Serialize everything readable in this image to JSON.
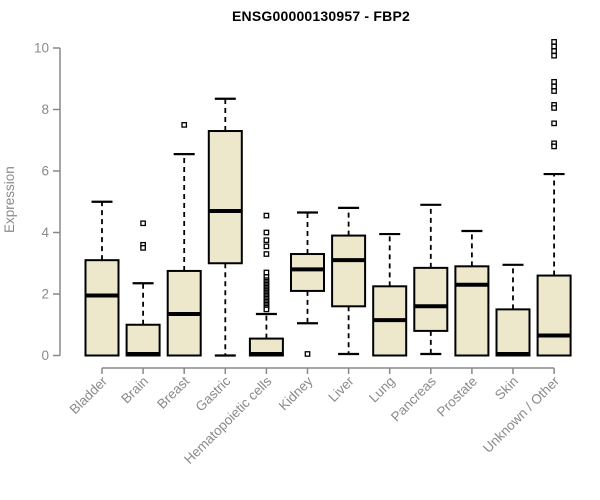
{
  "chart_data": {
    "type": "boxplot",
    "title": "ENSG00000130957 - FBP2",
    "xlabel": "",
    "ylabel": "Expression",
    "ylim": [
      0,
      10
    ],
    "yticks": [
      0,
      2,
      4,
      6,
      8,
      10
    ],
    "grid": false,
    "legend": "none",
    "colors": {
      "box_fill": "#ede8cc",
      "box_border": "#000000",
      "median": "#000000",
      "whisker": "#000000",
      "axis": "#888888",
      "tick_label": "#8a8a8a",
      "title": "#000000",
      "background": "#ffffff"
    },
    "categories": [
      "Bladder",
      "Brain",
      "Breast",
      "Gastric",
      "Hematopoietic cells",
      "Kidney",
      "Liver",
      "Lung",
      "Pancreas",
      "Prostate",
      "Skin",
      "Unknown / Other"
    ],
    "series": [
      {
        "name": "Bladder",
        "low": 0,
        "q1": 0,
        "median": 1.95,
        "q3": 3.1,
        "high": 5.0,
        "outliers": []
      },
      {
        "name": "Brain",
        "low": 0,
        "q1": 0,
        "median": 0.05,
        "q3": 1.0,
        "high": 2.35,
        "outliers": [
          4.3,
          3.6,
          3.5
        ]
      },
      {
        "name": "Breast",
        "low": 0,
        "q1": 0,
        "median": 1.35,
        "q3": 2.75,
        "high": 6.55,
        "outliers": [
          7.5
        ]
      },
      {
        "name": "Gastric",
        "low": 0,
        "q1": 3.0,
        "median": 4.7,
        "q3": 7.3,
        "high": 8.35,
        "outliers": []
      },
      {
        "name": "Hematopoietic cells",
        "low": 0,
        "q1": 0,
        "median": 0.05,
        "q3": 0.55,
        "high": 1.35,
        "outliers": [
          4.55,
          4.0,
          3.75,
          3.55,
          3.3,
          2.7,
          2.55,
          2.45,
          2.4,
          2.35,
          2.3,
          2.25,
          2.2,
          2.15,
          2.1,
          2.05,
          2.0,
          1.95,
          1.9,
          1.85,
          1.8,
          1.75,
          1.7,
          1.65,
          1.6,
          1.55,
          1.5
        ]
      },
      {
        "name": "Kidney",
        "low": 1.05,
        "q1": 2.1,
        "median": 2.8,
        "q3": 3.3,
        "high": 4.65,
        "outliers": [
          0.05
        ]
      },
      {
        "name": "Liver",
        "low": 0.05,
        "q1": 1.6,
        "median": 3.1,
        "q3": 3.9,
        "high": 4.8,
        "outliers": []
      },
      {
        "name": "Lung",
        "low": 0,
        "q1": 0,
        "median": 1.15,
        "q3": 2.25,
        "high": 3.95,
        "outliers": []
      },
      {
        "name": "Pancreas",
        "low": 0.05,
        "q1": 0.8,
        "median": 1.6,
        "q3": 2.85,
        "high": 4.9,
        "outliers": []
      },
      {
        "name": "Prostate",
        "low": 0,
        "q1": 0,
        "median": 2.3,
        "q3": 2.9,
        "high": 4.05,
        "outliers": []
      },
      {
        "name": "Skin",
        "low": 0,
        "q1": 0,
        "median": 0.05,
        "q3": 1.5,
        "high": 2.95,
        "outliers": []
      },
      {
        "name": "Unknown / Other",
        "low": 0,
        "q1": 0,
        "median": 0.65,
        "q3": 2.6,
        "high": 5.9,
        "outliers": [
          10.2,
          10.05,
          9.9,
          9.75,
          8.9,
          8.75,
          8.6,
          8.15,
          8.05,
          7.55,
          6.9,
          6.8
        ]
      }
    ]
  }
}
